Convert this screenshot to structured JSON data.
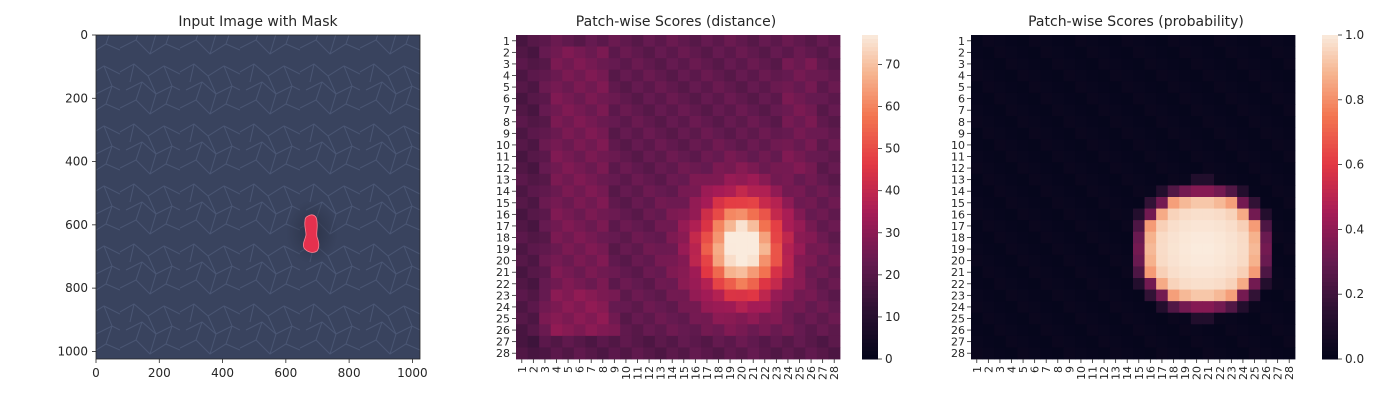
{
  "chart_data": [
    {
      "type": "image",
      "title": "Input Image with Mask",
      "x_ticks": [
        0,
        200,
        400,
        600,
        800,
        1000
      ],
      "y_ticks": [
        0,
        200,
        400,
        600,
        800,
        1000
      ],
      "xlim": [
        0,
        1024
      ],
      "ylim": [
        1024,
        0
      ],
      "colors": {
        "background": "#39435e",
        "mask": "#e5314e"
      },
      "mask_region": {
        "x": [
          665,
          700
        ],
        "y": [
          575,
          690
        ]
      }
    },
    {
      "type": "heatmap",
      "title": "Patch-wise Scores (distance)",
      "rows": 28,
      "cols": 28,
      "row_labels": [
        "1",
        "2",
        "3",
        "4",
        "5",
        "6",
        "7",
        "8",
        "9",
        "10",
        "11",
        "12",
        "13",
        "14",
        "15",
        "16",
        "17",
        "18",
        "19",
        "20",
        "21",
        "22",
        "23",
        "24",
        "25",
        "26",
        "27",
        "28"
      ],
      "col_labels": [
        "1",
        "2",
        "3",
        "4",
        "5",
        "6",
        "7",
        "8",
        "9",
        "10",
        "11",
        "12",
        "13",
        "14",
        "15",
        "16",
        "17",
        "18",
        "19",
        "20",
        "21",
        "22",
        "23",
        "24",
        "25",
        "26",
        "27",
        "28"
      ],
      "colorbar": {
        "min": 0,
        "max": 77,
        "ticks": [
          "0",
          "10",
          "20",
          "30",
          "40",
          "50",
          "60",
          "70"
        ],
        "tick_values": [
          0,
          10,
          20,
          30,
          40,
          50,
          60,
          70
        ]
      },
      "colormap": "rocket",
      "hotspot": {
        "center_row": 19,
        "center_col": 20,
        "peak": 76,
        "background": 22
      }
    },
    {
      "type": "heatmap",
      "title": "Patch-wise Scores (probability)",
      "rows": 28,
      "cols": 28,
      "row_labels": [
        "1",
        "2",
        "3",
        "4",
        "5",
        "6",
        "7",
        "8",
        "9",
        "10",
        "11",
        "12",
        "13",
        "14",
        "15",
        "16",
        "17",
        "18",
        "19",
        "20",
        "21",
        "22",
        "23",
        "24",
        "25",
        "26",
        "27",
        "28"
      ],
      "col_labels": [
        "1",
        "2",
        "3",
        "4",
        "5",
        "6",
        "7",
        "8",
        "9",
        "10",
        "11",
        "12",
        "13",
        "14",
        "15",
        "16",
        "17",
        "18",
        "19",
        "20",
        "21",
        "22",
        "23",
        "24",
        "25",
        "26",
        "27",
        "28"
      ],
      "colorbar": {
        "min": 0,
        "max": 1,
        "ticks": [
          "0.0",
          "0.2",
          "0.4",
          "0.6",
          "0.8",
          "1.0"
        ],
        "tick_values": [
          0,
          0.2,
          0.4,
          0.6,
          0.8,
          1.0
        ]
      },
      "colormap": "rocket",
      "hotspot": {
        "center_row": 19,
        "center_col": 20,
        "peak": 1.0,
        "background": 0.02
      }
    }
  ]
}
